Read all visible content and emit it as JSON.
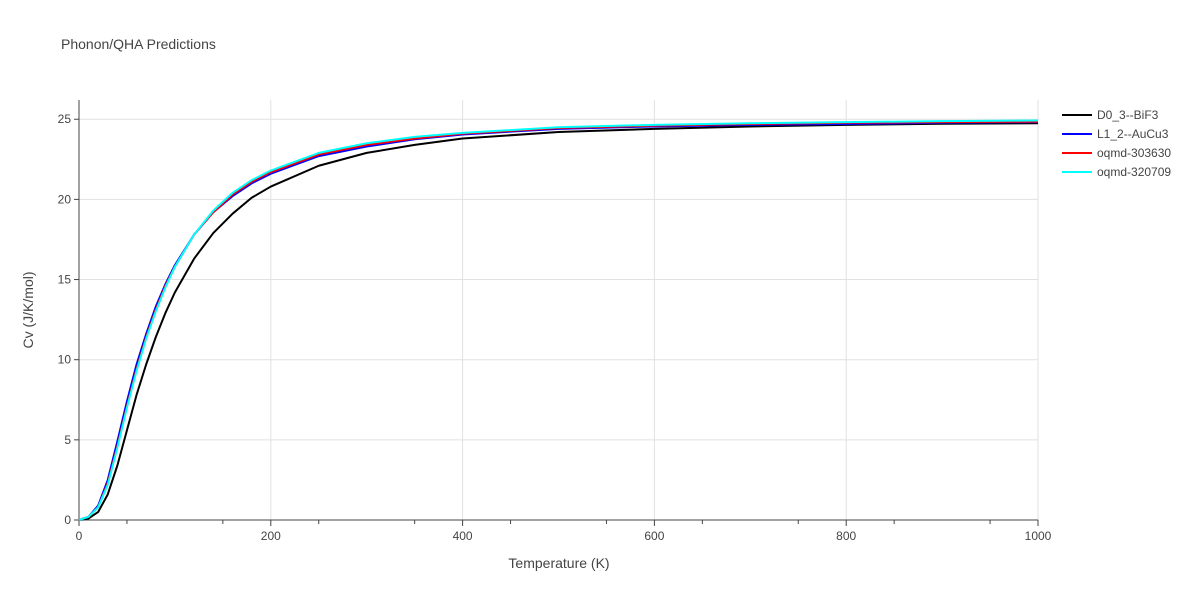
{
  "chart_data": {
    "type": "line",
    "title": "Phonon/QHA Predictions",
    "xlabel": "Temperature (K)",
    "ylabel": "Cv (J/K/mol)",
    "xlim": [
      0,
      1000
    ],
    "ylim": [
      0,
      26.2
    ],
    "x_ticks": [
      0,
      200,
      400,
      600,
      800,
      1000
    ],
    "y_ticks": [
      0,
      5,
      10,
      15,
      20,
      25
    ],
    "grid": true,
    "legend_position": "right",
    "series": [
      {
        "name": "D0_3--BiF3",
        "color": "#000000",
        "x": [
          0,
          10,
          20,
          30,
          40,
          50,
          60,
          70,
          80,
          90,
          100,
          120,
          140,
          160,
          180,
          200,
          250,
          300,
          350,
          400,
          500,
          600,
          700,
          800,
          900,
          1000
        ],
        "y": [
          0,
          0.1,
          0.5,
          1.6,
          3.4,
          5.6,
          7.8,
          9.7,
          11.4,
          12.9,
          14.2,
          16.3,
          17.9,
          19.1,
          20.1,
          20.8,
          22.1,
          22.9,
          23.4,
          23.8,
          24.2,
          24.4,
          24.55,
          24.65,
          24.72,
          24.75
        ]
      },
      {
        "name": "L1_2--AuCu3",
        "color": "#0000ff",
        "x": [
          0,
          10,
          20,
          30,
          40,
          50,
          60,
          70,
          80,
          90,
          100,
          120,
          140,
          160,
          180,
          200,
          250,
          300,
          350,
          400,
          500,
          600,
          700,
          800,
          900,
          1000
        ],
        "y": [
          0,
          0.2,
          0.9,
          2.5,
          4.9,
          7.4,
          9.7,
          11.6,
          13.3,
          14.7,
          15.9,
          17.8,
          19.2,
          20.2,
          21.0,
          21.6,
          22.7,
          23.3,
          23.75,
          24.05,
          24.4,
          24.55,
          24.65,
          24.7,
          24.78,
          24.82
        ]
      },
      {
        "name": "oqmd-303630",
        "color": "#ff0000",
        "x": [
          0,
          10,
          20,
          30,
          40,
          50,
          60,
          70,
          80,
          90,
          100,
          120,
          140,
          160,
          180,
          200,
          250,
          300,
          350,
          400,
          500,
          600,
          700,
          800,
          900,
          1000
        ],
        "y": [
          0,
          0.2,
          0.8,
          2.3,
          4.6,
          7.1,
          9.4,
          11.4,
          13.1,
          14.6,
          15.8,
          17.8,
          19.2,
          20.3,
          21.1,
          21.7,
          22.8,
          23.4,
          23.8,
          24.1,
          24.45,
          24.6,
          24.7,
          24.78,
          24.82,
          24.85
        ]
      },
      {
        "name": "oqmd-320709",
        "color": "#00ffff",
        "x": [
          0,
          10,
          20,
          30,
          40,
          50,
          60,
          70,
          80,
          90,
          100,
          120,
          140,
          160,
          180,
          200,
          250,
          300,
          350,
          400,
          500,
          600,
          700,
          800,
          900,
          1000
        ],
        "y": [
          0,
          0.2,
          0.8,
          2.2,
          4.5,
          7.0,
          9.3,
          11.3,
          13.0,
          14.5,
          15.8,
          17.8,
          19.3,
          20.4,
          21.2,
          21.8,
          22.9,
          23.5,
          23.9,
          24.15,
          24.5,
          24.65,
          24.75,
          24.82,
          24.88,
          24.92
        ]
      }
    ]
  }
}
